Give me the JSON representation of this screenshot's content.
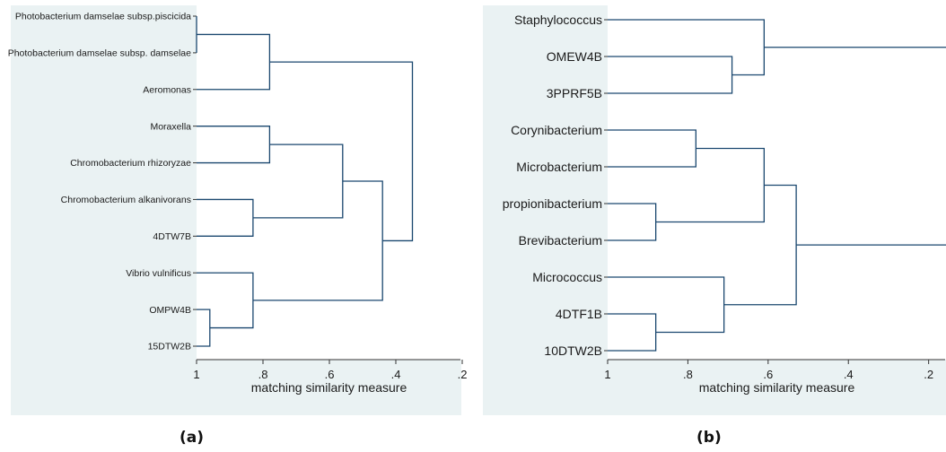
{
  "colors": {
    "panel_bg": "#eaf2f3",
    "plot_bg": "#ffffff",
    "link": "#1a476f",
    "axis": "#333333",
    "text": "#1a1a1a"
  },
  "chart_data": [
    {
      "type": "dendrogram",
      "caption": "(a)",
      "xlabel": "matching similarity measure",
      "xlim": [
        1,
        0.2
      ],
      "xticks": [
        {
          "value": 1,
          "label": "1"
        },
        {
          "value": 0.8,
          "label": ".8"
        },
        {
          "value": 0.6,
          "label": ".6"
        },
        {
          "value": 0.4,
          "label": ".4"
        },
        {
          "value": 0.2,
          "label": ".2"
        }
      ],
      "leaves": [
        "Photobacterium damselae subsp.piscicida",
        "Photobacterium damselae subsp. damselae",
        "Aeromonas",
        "Moraxella",
        "Chromobacterium rhizoryzae",
        "Chromobacterium alkanivorans",
        "4DTW7B",
        "Vibrio vulnificus",
        "OMPW4B",
        "15DTW2B"
      ],
      "merges": [
        {
          "a": "L0",
          "b": "L1",
          "height": 1.0
        },
        {
          "a": "L8",
          "b": "L9",
          "height": 0.96
        },
        {
          "a": "L5",
          "b": "L6",
          "height": 0.83
        },
        {
          "a": "L7",
          "b": "M1",
          "height": 0.83
        },
        {
          "a": "M0",
          "b": "L2",
          "height": 0.78
        },
        {
          "a": "L3",
          "b": "L4",
          "height": 0.78
        },
        {
          "a": "M5",
          "b": "M2",
          "height": 0.56
        },
        {
          "a": "M6",
          "b": "M3",
          "height": 0.44
        },
        {
          "a": "M4",
          "b": "M7",
          "height": 0.35
        }
      ]
    },
    {
      "type": "dendrogram",
      "caption": "(b)",
      "xlabel": "matching similarity measure",
      "xlim": [
        1,
        0.15
      ],
      "xticks": [
        {
          "value": 1,
          "label": "1"
        },
        {
          "value": 0.8,
          "label": ".8"
        },
        {
          "value": 0.6,
          "label": ".6"
        },
        {
          "value": 0.4,
          "label": ".4"
        },
        {
          "value": 0.2,
          "label": ".2"
        }
      ],
      "leaves": [
        "Staphylococcus",
        "OMEW4B",
        "3PPRF5B",
        "Corynibacterium",
        "Microbacterium",
        "propionibacterium",
        "Brevibacterium",
        "Micrococcus",
        "4DTF1B",
        "10DTW2B"
      ],
      "merges": [
        {
          "a": "L5",
          "b": "L6",
          "height": 0.88
        },
        {
          "a": "L8",
          "b": "L9",
          "height": 0.88
        },
        {
          "a": "L3",
          "b": "L4",
          "height": 0.78
        },
        {
          "a": "L1",
          "b": "L2",
          "height": 0.69
        },
        {
          "a": "L0",
          "b": "M3",
          "height": 0.61
        },
        {
          "a": "M2",
          "b": "M0",
          "height": 0.61
        },
        {
          "a": "L7",
          "b": "M1",
          "height": 0.71
        },
        {
          "a": "M5",
          "b": "M6",
          "height": 0.53
        },
        {
          "a": "M4",
          "b": "M7",
          "height": 0.15
        }
      ]
    }
  ]
}
